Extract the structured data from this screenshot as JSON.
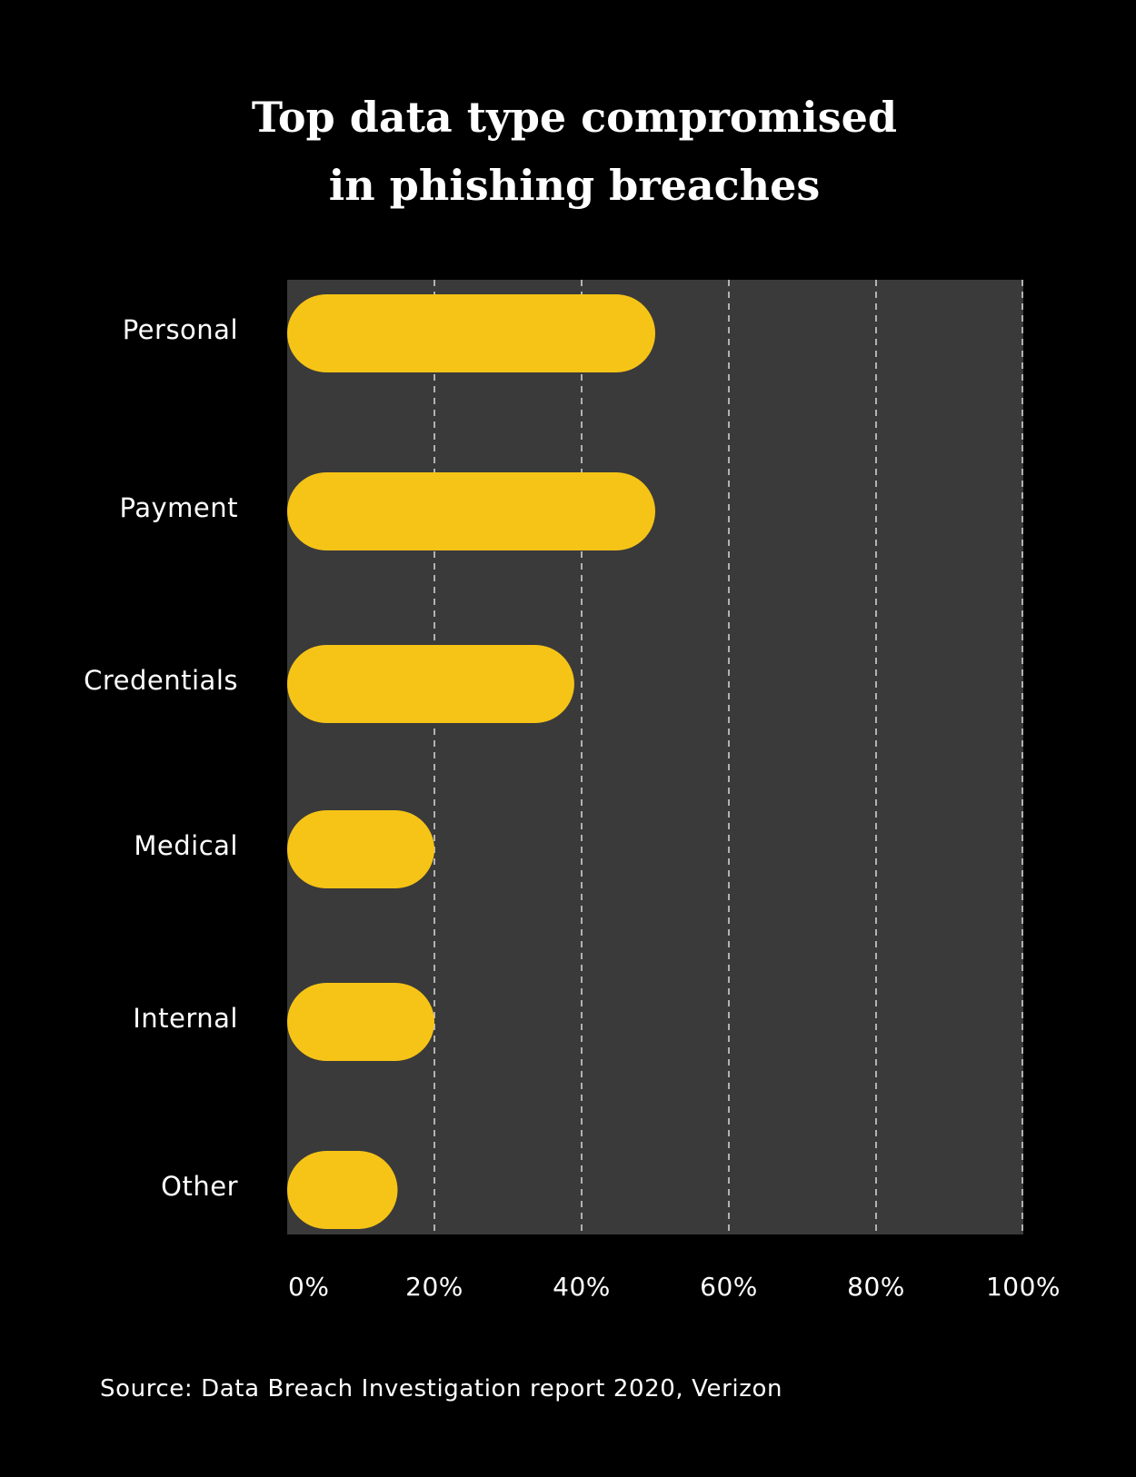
{
  "chart_data": {
    "type": "bar",
    "orientation": "horizontal",
    "title_lines": [
      "Top data type compromised",
      "in phishing breaches"
    ],
    "categories": [
      "Personal",
      "Payment",
      "Credentials",
      "Medical",
      "Internal",
      "Other"
    ],
    "values": [
      50,
      50,
      39,
      20,
      20,
      15
    ],
    "unit": "%",
    "xlim": [
      0,
      100
    ],
    "x_ticks": [
      0,
      20,
      40,
      60,
      80,
      100
    ],
    "x_tick_labels": [
      "0%",
      "20%",
      "40%",
      "60%",
      "80%",
      "100%"
    ],
    "grid": true,
    "grid_style": "dashed vertical",
    "legend": "none",
    "colors": {
      "background": "#000000",
      "plot_area": "#3a3a3a",
      "bar": "#f6c416",
      "text": "#ffffff",
      "grid": "#d9d9d9"
    }
  },
  "source": "Source: Data Breach Investigation report 2020, Verizon"
}
